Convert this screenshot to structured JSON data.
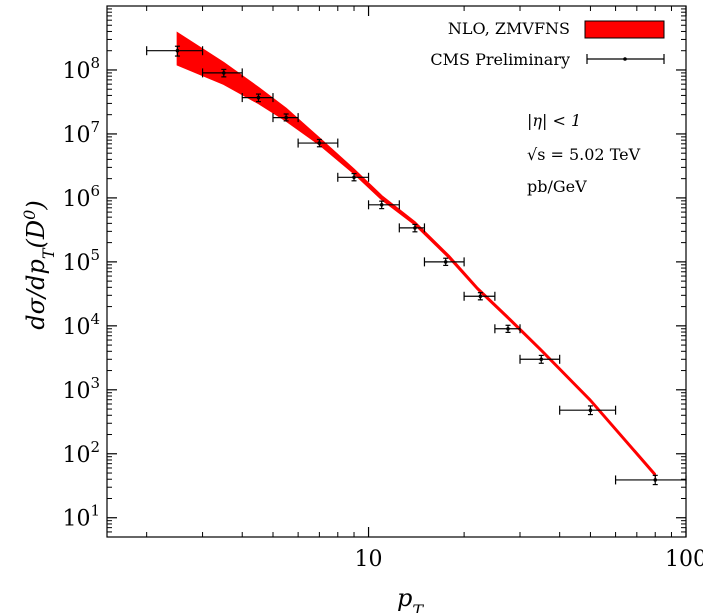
{
  "chart_data": {
    "type": "scatter",
    "title": "",
    "xlabel": "p_T",
    "ylabel": "dσ/dp_T(D^0)",
    "xscale": "log",
    "yscale": "log",
    "xlim": [
      1.5,
      100
    ],
    "ylim": [
      5,
      1000000000
    ],
    "grid": false,
    "legend_position": "top-right",
    "x_ticks": [
      {
        "value": 10,
        "label": "10"
      },
      {
        "value": 100,
        "label": "100"
      }
    ],
    "y_ticks": [
      {
        "value": 10,
        "base": "10",
        "exp": "1"
      },
      {
        "value": 100,
        "base": "10",
        "exp": "2"
      },
      {
        "value": 1000,
        "base": "10",
        "exp": "3"
      },
      {
        "value": 10000,
        "base": "10",
        "exp": "4"
      },
      {
        "value": 100000,
        "base": "10",
        "exp": "5"
      },
      {
        "value": 1000000,
        "base": "10",
        "exp": "6"
      },
      {
        "value": 10000000,
        "base": "10",
        "exp": "7"
      },
      {
        "value": 100000000,
        "base": "10",
        "exp": "8"
      }
    ],
    "band": {
      "name": "NLO, ZMVFNS",
      "color": "#ff0000",
      "x": [
        2.5,
        3.5,
        4.5,
        5.5,
        7,
        9,
        11,
        14,
        18,
        22,
        28,
        35,
        50,
        80
      ],
      "lower": [
        120000000.0,
        60000000.0,
        30000000.0,
        16000000.0,
        6800000.0,
        2400000.0,
        940000.0,
        380000.0,
        112000.0,
        37000.0,
        11800.0,
        4000.0,
        660.0,
        45.0
      ],
      "upper": [
        380000000.0,
        130000000.0,
        53000000.0,
        25000000.0,
        8600000.0,
        2800000.0,
        1080000.0,
        420000.0,
        123000.0,
        40000.0,
        12800.0,
        4300.0,
        710.0,
        49.0
      ]
    },
    "series": [
      {
        "name": "CMS Preliminary",
        "color": "#000000",
        "points": [
          {
            "x": 2.5,
            "y": 200000000.0,
            "xlo": 2.0,
            "xhi": 3.0,
            "ylo": 165000000.0,
            "yhi": 235000000.0
          },
          {
            "x": 3.5,
            "y": 90000000.0,
            "xlo": 3.0,
            "xhi": 4.0,
            "ylo": 78000000.0,
            "yhi": 102000000.0
          },
          {
            "x": 4.5,
            "y": 37000000.0,
            "xlo": 4.0,
            "xhi": 5.0,
            "ylo": 32000000.0,
            "yhi": 42000000.0
          },
          {
            "x": 5.5,
            "y": 18000000.0,
            "xlo": 5.0,
            "xhi": 6.0,
            "ylo": 16000000.0,
            "yhi": 20500000.0
          },
          {
            "x": 7.0,
            "y": 7200000.0,
            "xlo": 6.0,
            "xhi": 8.0,
            "ylo": 6300000.0,
            "yhi": 8200000.0
          },
          {
            "x": 9.0,
            "y": 2100000.0,
            "xlo": 8.0,
            "xhi": 10.0,
            "ylo": 1850000.0,
            "yhi": 2400000.0
          },
          {
            "x": 11.0,
            "y": 780000.0,
            "xlo": 10.0,
            "xhi": 12.5,
            "ylo": 680000.0,
            "yhi": 890000.0
          },
          {
            "x": 14.0,
            "y": 340000.0,
            "xlo": 12.5,
            "xhi": 15.0,
            "ylo": 295000.0,
            "yhi": 385000.0
          },
          {
            "x": 17.5,
            "y": 100000.0,
            "xlo": 15.0,
            "xhi": 20.0,
            "ylo": 88000.0,
            "yhi": 114000.0
          },
          {
            "x": 22.5,
            "y": 29000.0,
            "xlo": 20.0,
            "xhi": 25.0,
            "ylo": 25500.0,
            "yhi": 33000.0
          },
          {
            "x": 27.5,
            "y": 9000.0,
            "xlo": 25.0,
            "xhi": 30.0,
            "ylo": 7900.0,
            "yhi": 10200.0
          },
          {
            "x": 35.0,
            "y": 3000.0,
            "xlo": 30.0,
            "xhi": 40.0,
            "ylo": 2600.0,
            "yhi": 3450.0
          },
          {
            "x": 50.0,
            "y": 480.0,
            "xlo": 40.0,
            "xhi": 60.0,
            "ylo": 410.0,
            "yhi": 560.0
          },
          {
            "x": 80.0,
            "y": 39.0,
            "xlo": 60.0,
            "xhi": 100.0,
            "ylo": 33.0,
            "yhi": 46.0
          }
        ]
      }
    ],
    "annotations": [
      "|η| < 1",
      "√s = 5.02 TeV",
      "pb/GeV"
    ]
  }
}
